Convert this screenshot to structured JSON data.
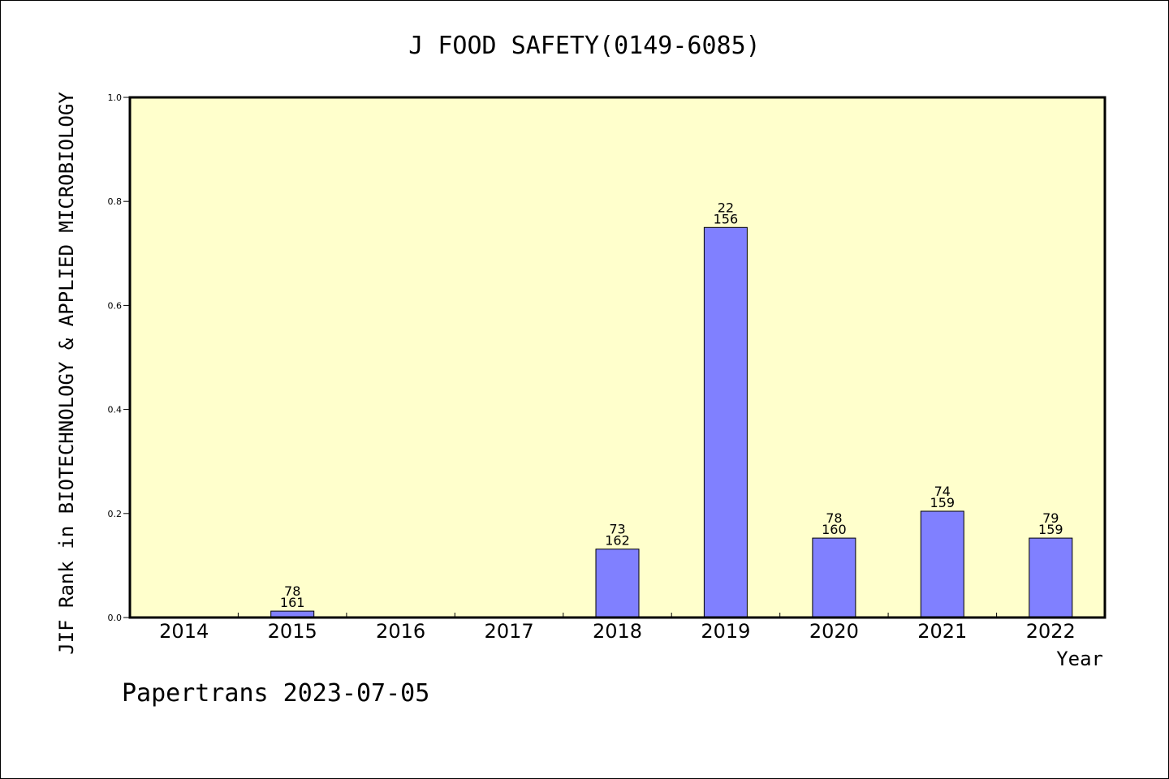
{
  "chart_data": {
    "type": "bar",
    "title": "J FOOD SAFETY(0149-6085)",
    "xlabel": "Year",
    "ylabel": "JIF Rank in BIOTECHNOLOGY & APPLIED MICROBIOLOGY",
    "categories": [
      "2014",
      "2015",
      "2016",
      "2017",
      "2018",
      "2019",
      "2020",
      "2021",
      "2022"
    ],
    "values": [
      0,
      0.0124,
      0,
      0,
      0.1315,
      0.75,
      0.1528,
      0.2044,
      0.1528
    ],
    "labels_top": [
      "",
      "78",
      "",
      "",
      "73",
      "22",
      "78",
      "74",
      "79"
    ],
    "labels_bottom": [
      "",
      "161",
      "",
      "",
      "162",
      "156",
      "160",
      "159",
      "159"
    ],
    "ylim": [
      0,
      1.0
    ],
    "yticks": [
      "0.0",
      "0.2",
      "0.4",
      "0.6",
      "0.8",
      "1.0"
    ],
    "grid": false,
    "colors": {
      "plot_background": "#ffffcc",
      "bar_fill": "#8080ff",
      "bar_stroke": "#000000",
      "axis": "#000000"
    }
  },
  "footer": "Papertrans 2023-07-05"
}
